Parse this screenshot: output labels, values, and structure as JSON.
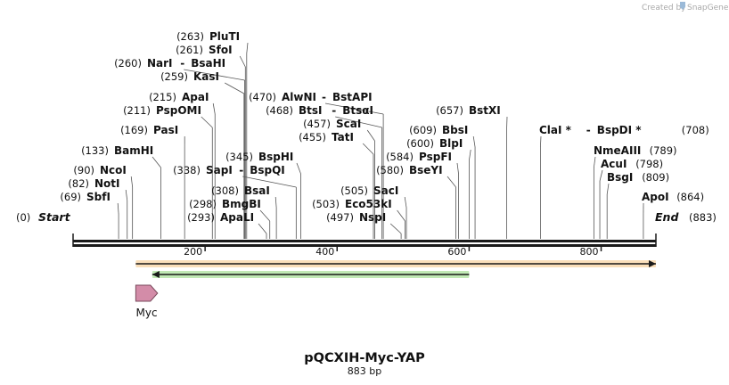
{
  "credit": {
    "text": "Created by",
    "brand": "SnapGene"
  },
  "title": "pQCXIH-Myc-YAP",
  "subtitle": "883 bp",
  "scale": {
    "length": 883,
    "ticks": [
      200,
      400,
      600,
      800
    ]
  },
  "ends": {
    "start_pos": "(0)",
    "start_label": "Start",
    "end_label": "End",
    "end_pos": "(883)"
  },
  "colors": {
    "backbone": "#1a1a1a",
    "orange_bar": "#f1a43a",
    "green_bar": "#4cbf2a",
    "myc_fill": "#d38ca8"
  },
  "enzymes": [
    {
      "id": "sbfi",
      "pos": 69,
      "name": "SbfI",
      "pos_label": "(69)",
      "side": "left"
    },
    {
      "id": "noti",
      "pos": 82,
      "name": "NotI",
      "pos_label": "(82)",
      "side": "left"
    },
    {
      "id": "ncoi",
      "pos": 90,
      "name": "NcoI",
      "pos_label": "(90)",
      "side": "left"
    },
    {
      "id": "bamhi",
      "pos": 133,
      "name": "BamHI",
      "pos_label": "(133)",
      "side": "left"
    },
    {
      "id": "pasi",
      "pos": 169,
      "name": "PasI",
      "pos_label": "(169)",
      "side": "left"
    },
    {
      "id": "pspomi",
      "pos": 211,
      "name": "PspOMI",
      "pos_label": "(211)",
      "side": "left"
    },
    {
      "id": "apai",
      "pos": 215,
      "name": "ApaI",
      "pos_label": "(215)",
      "side": "left"
    },
    {
      "id": "kasi",
      "pos": 259,
      "name": "KasI",
      "pos_label": "(259)",
      "side": "left"
    },
    {
      "id": "nari",
      "pos": 260,
      "name": "NarI",
      "pos_label": "(260)",
      "side": "left",
      "partner": "BsaHI"
    },
    {
      "id": "sfoi",
      "pos": 261,
      "name": "SfoI",
      "pos_label": "(261)",
      "side": "left"
    },
    {
      "id": "pluti",
      "pos": 263,
      "name": "PluTI",
      "pos_label": "(263)",
      "side": "left"
    },
    {
      "id": "apali",
      "pos": 293,
      "name": "ApaLI",
      "pos_label": "(293)",
      "side": "left"
    },
    {
      "id": "bmgbi",
      "pos": 298,
      "name": "BmgBI",
      "pos_label": "(298)",
      "side": "left"
    },
    {
      "id": "bsai",
      "pos": 308,
      "name": "BsaI",
      "pos_label": "(308)",
      "side": "left"
    },
    {
      "id": "sapi",
      "pos": 338,
      "name": "SapI",
      "pos_label": "(338)",
      "side": "left",
      "partner": "BspQI"
    },
    {
      "id": "bsphi",
      "pos": 345,
      "name": "BspHI",
      "pos_label": "(345)",
      "side": "left"
    },
    {
      "id": "tati",
      "pos": 455,
      "name": "TatI",
      "pos_label": "(455)",
      "side": "left"
    },
    {
      "id": "scai",
      "pos": 457,
      "name": "ScaI",
      "pos_label": "(457)",
      "side": "left"
    },
    {
      "id": "btsi",
      "pos": 468,
      "name": "BtsI",
      "pos_label": "(468)",
      "side": "left",
      "partner": "BtsαI"
    },
    {
      "id": "alwni",
      "pos": 470,
      "name": "AlwNI",
      "pos_label": "(470)",
      "side": "left",
      "partner": "BstAPI"
    },
    {
      "id": "nspi",
      "pos": 497,
      "name": "NspI",
      "pos_label": "(497)",
      "side": "left"
    },
    {
      "id": "eco53ki",
      "pos": 503,
      "name": "Eco53kI",
      "pos_label": "(503)",
      "side": "left"
    },
    {
      "id": "saci",
      "pos": 505,
      "name": "SacI",
      "pos_label": "(505)",
      "side": "left"
    },
    {
      "id": "bseyi",
      "pos": 580,
      "name": "BseYI",
      "pos_label": "(580)",
      "side": "left"
    },
    {
      "id": "pspfi",
      "pos": 584,
      "name": "PspFI",
      "pos_label": "(584)",
      "side": "left"
    },
    {
      "id": "blpi",
      "pos": 600,
      "name": "BlpI",
      "pos_label": "(600)",
      "side": "left"
    },
    {
      "id": "bbsi",
      "pos": 609,
      "name": "BbsI",
      "pos_label": "(609)",
      "side": "left"
    },
    {
      "id": "bstxi",
      "pos": 657,
      "name": "BstXI",
      "pos_label": "(657)",
      "side": "left"
    },
    {
      "id": "clai",
      "pos": 708,
      "name": "ClaI *",
      "pos_label": "(708)",
      "side": "right",
      "partner": "BspDI *"
    },
    {
      "id": "nmeaiii",
      "pos": 789,
      "name": "NmeAIII",
      "pos_label": "(789)",
      "side": "right"
    },
    {
      "id": "acui",
      "pos": 798,
      "name": "AcuI",
      "pos_label": "(798)",
      "side": "right"
    },
    {
      "id": "bsgi",
      "pos": 809,
      "name": "BsgI",
      "pos_label": "(809)",
      "side": "right"
    },
    {
      "id": "apoi",
      "pos": 864,
      "name": "ApoI",
      "pos_label": "(864)",
      "side": "right"
    }
  ],
  "features": [
    {
      "id": "orange",
      "type": "bar",
      "start": 95,
      "end": 883,
      "direction": "forward",
      "color": "#f1a43a"
    },
    {
      "id": "green",
      "type": "bar",
      "start": 120,
      "end": 600,
      "direction": "reverse",
      "color": "#4cbf2a"
    },
    {
      "id": "myc",
      "type": "arrow",
      "start": 95,
      "end": 128,
      "direction": "forward",
      "label": "Myc",
      "color": "#d38ca8"
    }
  ]
}
